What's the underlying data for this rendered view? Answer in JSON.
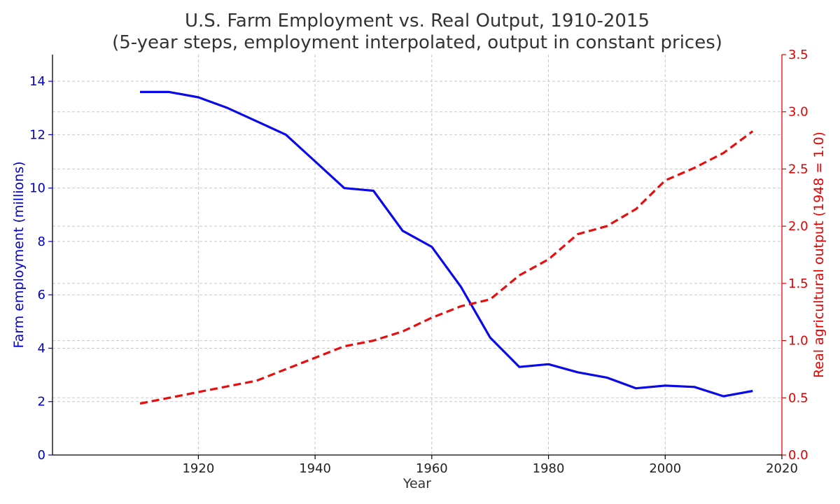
{
  "chart_data": {
    "type": "line",
    "title": "U.S. Farm Employment vs. Real Output, 1910-2015",
    "subtitle": "(5-year steps, employment interpolated, output in constant prices)",
    "xlabel": "Year",
    "ylabel_left": "Farm employment (millions)",
    "ylabel_right": "Real agricultural output (1948 = 1.0)",
    "xlim": [
      1895,
      2020
    ],
    "ylim_left": [
      0,
      15
    ],
    "ylim_right": [
      0,
      3.5
    ],
    "x_ticks": [
      1920,
      1940,
      1960,
      1980,
      2000,
      2020
    ],
    "y_left_ticks": [
      0,
      2,
      4,
      6,
      8,
      10,
      12,
      14
    ],
    "y_right_ticks": [
      "0.0",
      "0.5",
      "1.0",
      "1.5",
      "2.0",
      "2.5",
      "3.0",
      "3.5"
    ],
    "grid": true,
    "legend": "none",
    "colors": {
      "employment": "#0a0ae6",
      "output": "#e60f0f",
      "axis_left": "#0000cc",
      "axis_right": "#e60000",
      "grid": "#c8c8c8",
      "text": "#333333"
    },
    "x": [
      1910,
      1915,
      1920,
      1925,
      1930,
      1935,
      1940,
      1945,
      1950,
      1955,
      1960,
      1965,
      1970,
      1975,
      1980,
      1985,
      1990,
      1995,
      2000,
      2005,
      2010,
      2015
    ],
    "series": [
      {
        "axis": "left",
        "style": "solid",
        "values": [
          13.6,
          13.6,
          13.4,
          13.0,
          12.5,
          12.0,
          11.0,
          10.0,
          9.9,
          8.4,
          7.8,
          6.3,
          4.4,
          3.3,
          3.4,
          3.1,
          2.9,
          2.5,
          2.6,
          2.55,
          2.2,
          2.4
        ]
      },
      {
        "axis": "right",
        "style": "dashed",
        "values": [
          0.45,
          0.5,
          0.55,
          0.6,
          0.65,
          0.75,
          0.85,
          0.95,
          1.0,
          1.08,
          1.2,
          1.3,
          1.36,
          1.57,
          1.71,
          1.93,
          2.0,
          2.15,
          2.4,
          2.51,
          2.64,
          2.83
        ]
      }
    ]
  }
}
